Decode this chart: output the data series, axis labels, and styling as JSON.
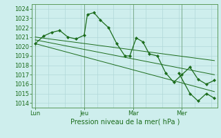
{
  "title": "Pression niveau de la mer( hPa )",
  "background_color": "#ceeeed",
  "grid_color": "#b0d8d8",
  "line_color": "#1a6b1a",
  "spine_color": "#5a9a5a",
  "ylim": [
    1013.5,
    1024.5
  ],
  "yticks": [
    1014,
    1015,
    1016,
    1017,
    1018,
    1019,
    1020,
    1021,
    1022,
    1023,
    1024
  ],
  "xtick_labels": [
    "Lun",
    "Jeu",
    "Mar",
    "Mer"
  ],
  "xtick_positions": [
    0,
    30,
    60,
    90
  ],
  "vline_positions": [
    0,
    30,
    60,
    90
  ],
  "xlim": [
    -2,
    112
  ],
  "data_x": [
    0,
    5,
    10,
    15,
    20,
    25,
    30,
    32,
    36,
    40,
    45,
    50,
    55,
    58,
    62,
    66,
    70,
    75,
    80,
    85,
    90,
    95,
    100,
    105,
    110
  ],
  "data_y": [
    1020.3,
    1021.1,
    1021.5,
    1021.7,
    1021.0,
    1020.8,
    1021.2,
    1023.4,
    1023.6,
    1022.8,
    1022.0,
    1020.3,
    1019.0,
    1019.0,
    1020.9,
    1020.5,
    1019.2,
    1019.0,
    1017.2,
    1016.2,
    1017.0,
    1017.8,
    1016.5,
    1016.0,
    1016.4
  ],
  "secondary_x": [
    88,
    95,
    100,
    105,
    110
  ],
  "secondary_y": [
    1017.2,
    1015.0,
    1014.2,
    1015.0,
    1014.5
  ],
  "trend1_x": [
    0,
    110
  ],
  "trend1_y": [
    1021.0,
    1018.5
  ],
  "trend2_x": [
    0,
    110
  ],
  "trend2_y": [
    1020.7,
    1017.0
  ],
  "trend3_x": [
    0,
    110
  ],
  "trend3_y": [
    1020.3,
    1015.2
  ]
}
